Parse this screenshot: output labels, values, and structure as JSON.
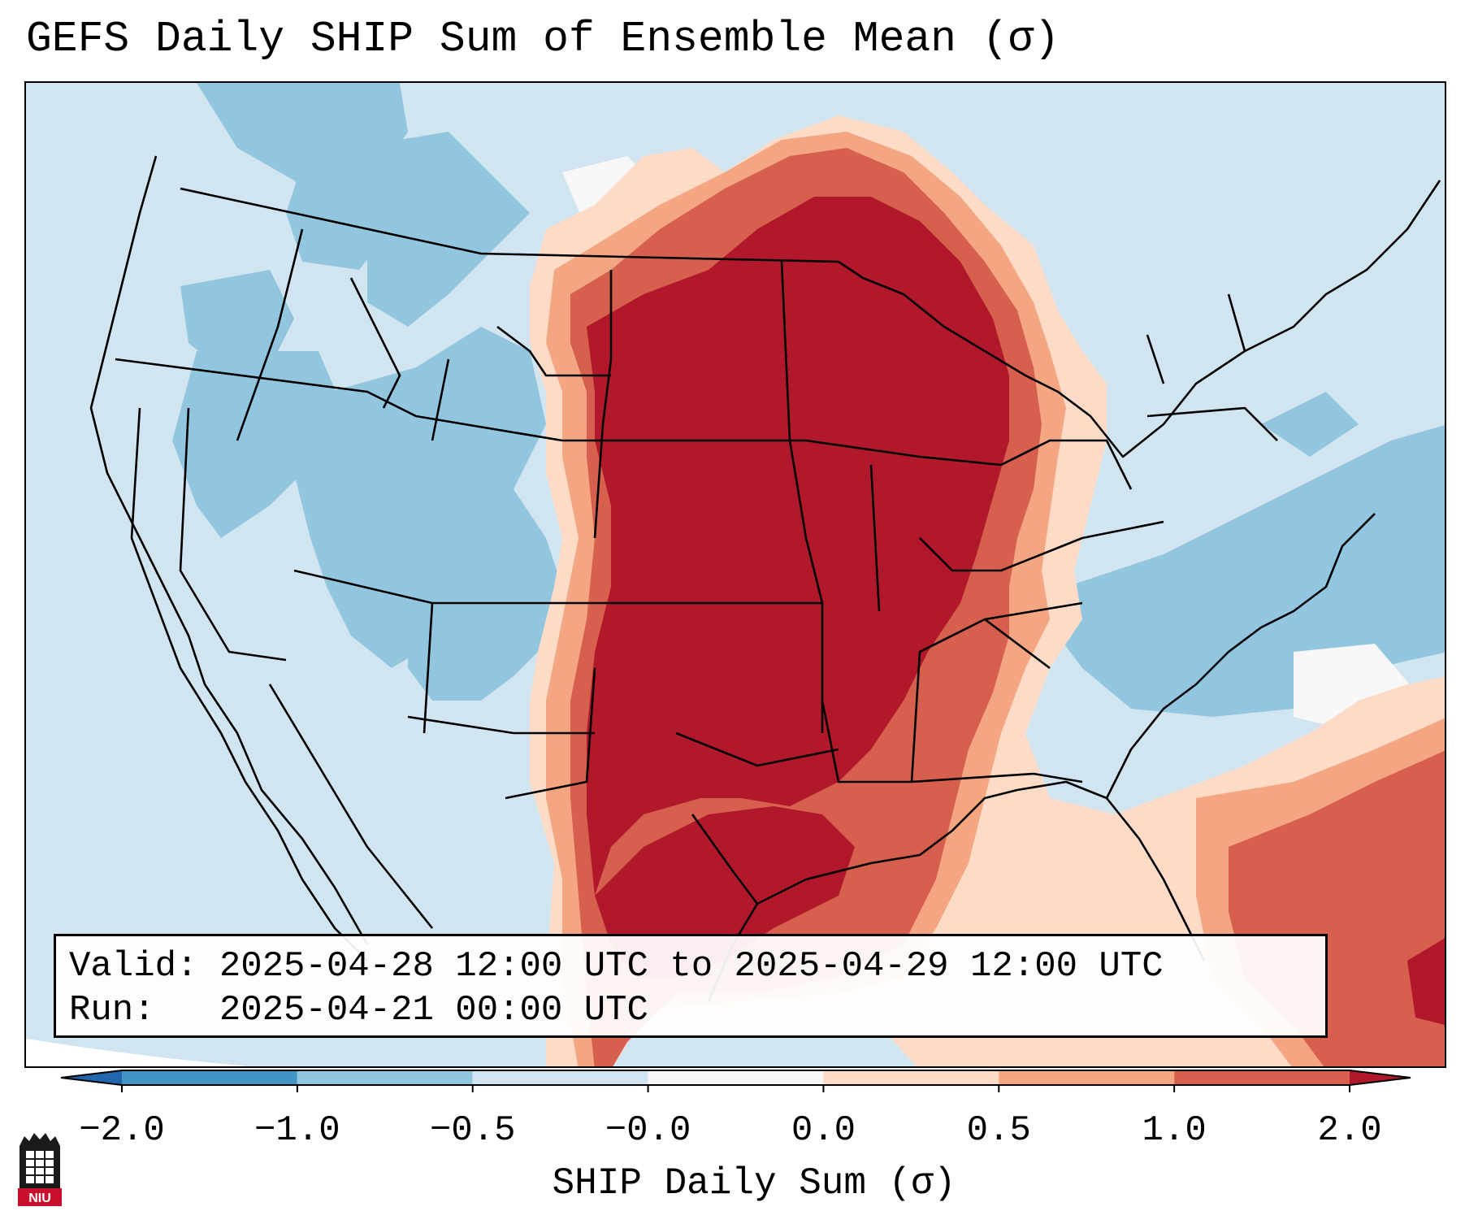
{
  "title": "GEFS Daily SHIP Sum of Ensemble Mean (σ)",
  "info": {
    "valid_label": "Valid:",
    "valid_value": "2025-04-28 12:00 UTC to 2025-04-29 12:00 UTC",
    "run_label": "Run:",
    "run_value": "2025-04-21 00:00 UTC"
  },
  "colorbar": {
    "label": "SHIP Daily Sum (σ)",
    "ticks": [
      "−2.0",
      "−1.0",
      "−0.5",
      "−0.0",
      "0.0",
      "0.5",
      "1.0",
      "2.0"
    ],
    "colors": [
      "#4393c3",
      "#92c5de",
      "#d1e5f0",
      "#f7f7f7",
      "#fddbc7",
      "#f4a582",
      "#d6604d",
      "#b2182b"
    ],
    "extend": "both"
  },
  "map_colors": {
    "very_low": "#92c5de",
    "low": "#d1e5f0",
    "near_zero": "#f7f7f7",
    "slight_high": "#fddbc7",
    "moderate_high": "#f4a582",
    "high": "#d6604d",
    "very_high": "#b2182b",
    "borders": "#000000"
  },
  "logo": {
    "text": "NIU",
    "color": "#c8102e"
  }
}
